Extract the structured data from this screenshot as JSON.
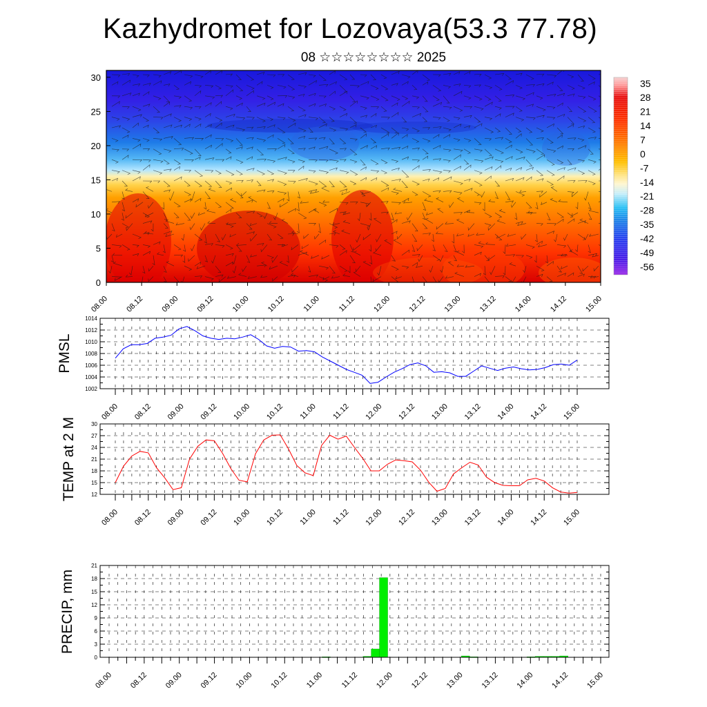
{
  "title": "Kazhydromet for Lozovaya(53.3 77.78)",
  "subtitle": "08 ☆☆☆☆☆☆☆☆ 2025",
  "colors": {
    "pmsl_line": "#0000ff",
    "temp_line": "#ff0000",
    "precip_bar": "#00ee00",
    "precip_bar_edge": "#00aa00",
    "axis": "#000000"
  },
  "chart_data": [
    {
      "type": "heatmap",
      "name": "cross-section",
      "x_tick_labels": [
        "08.00",
        "08.12",
        "09.00",
        "09.12",
        "10.00",
        "10.12",
        "11.00",
        "11.12",
        "12.00",
        "12.12",
        "13.00",
        "13.12",
        "14.00",
        "14.12",
        "15.00"
      ],
      "y_tick_labels": [
        "0",
        "5",
        "10",
        "15",
        "20",
        "25",
        "30"
      ],
      "ylim": [
        0,
        31
      ],
      "colorbar_labels": [
        "35",
        "28",
        "21",
        "14",
        "7",
        "0",
        "-7",
        "-14",
        "-21",
        "-28",
        "-35",
        "-42",
        "-49",
        "-56"
      ],
      "colorbar_range": [
        -60,
        38
      ],
      "has_wind_barbs": true
    },
    {
      "type": "line",
      "ylabel": "PMSL",
      "x_tick_labels": [
        "08.00",
        "08.12",
        "09.00",
        "09.12",
        "10.00",
        "10.12",
        "11.00",
        "11.12",
        "12.00",
        "12.12",
        "13.00",
        "13.12",
        "14.00",
        "14.12",
        "15.00"
      ],
      "y_tick_labels": [
        "1002",
        "1004",
        "1006",
        "1008",
        "1010",
        "1012",
        "1014"
      ],
      "ylim": [
        1002,
        1014
      ],
      "values": [
        1007.2,
        1008.8,
        1009.5,
        1009.5,
        1009.7,
        1010.6,
        1010.8,
        1011.1,
        1012.2,
        1012.6,
        1011.9,
        1011,
        1010.6,
        1010.4,
        1010.6,
        1010.5,
        1010.8,
        1011.2,
        1010.4,
        1009.3,
        1008.9,
        1009.2,
        1009.1,
        1008.4,
        1008.5,
        1008.3,
        1007.4,
        1006.7,
        1006,
        1005.3,
        1004.8,
        1004.3,
        1002.9,
        1003.1,
        1004,
        1004.8,
        1005.4,
        1006.1,
        1006.4,
        1005.9,
        1004.8,
        1004.9,
        1004.7,
        1004.1,
        1004.1,
        1005,
        1005.9,
        1005.5,
        1005.1,
        1005.5,
        1005.7,
        1005.4,
        1005.2,
        1005.3,
        1005.6,
        1006.1,
        1006.2,
        1006,
        1006.9
      ]
    },
    {
      "type": "line",
      "ylabel": "TEMP at 2 M",
      "x_tick_labels": [
        "08.00",
        "08.12",
        "09.00",
        "09.12",
        "10.00",
        "10.12",
        "11.00",
        "11.12",
        "12.00",
        "12.12",
        "13.00",
        "13.12",
        "14.00",
        "14.12",
        "15.00"
      ],
      "y_tick_labels": [
        "12",
        "15",
        "18",
        "21",
        "24",
        "27",
        "30"
      ],
      "ylim": [
        12,
        30
      ],
      "values": [
        15,
        19.2,
        21.8,
        23,
        22.6,
        18.8,
        16.2,
        13.2,
        13.7,
        21,
        24.3,
        25.9,
        25.7,
        22.5,
        18.6,
        15.6,
        15.2,
        22.4,
        25.9,
        27.1,
        27.2,
        23.6,
        19.4,
        17.5,
        16.8,
        24.5,
        27.1,
        26.1,
        26.9,
        24,
        21.2,
        18,
        18,
        19.7,
        20.8,
        20.6,
        20.3,
        18.2,
        15.1,
        12.8,
        13.5,
        17.2,
        18.8,
        20.2,
        19.5,
        16.4,
        15,
        14.3,
        14.2,
        14.2,
        15.7,
        16.1,
        15.4,
        13.7,
        12.6,
        12.3,
        12.5
      ]
    },
    {
      "type": "bar",
      "ylabel": "PRECIP, mm",
      "x_tick_labels": [
        "08.00",
        "08.12",
        "09.00",
        "09.12",
        "10.00",
        "10.12",
        "11.00",
        "11.12",
        "12.00",
        "12.12",
        "13.00",
        "13.12",
        "14.00",
        "14.12",
        "15.00"
      ],
      "y_tick_labels": [
        "0",
        "3",
        "6",
        "9",
        "12",
        "15",
        "18",
        "21"
      ],
      "ylim": [
        0,
        21
      ],
      "steps": 60,
      "bars": [
        {
          "step": 26,
          "value": 0.1
        },
        {
          "step": 31,
          "value": 0.2
        },
        {
          "step": 32,
          "value": 1.9
        },
        {
          "step": 33,
          "value": 18.2
        },
        {
          "step": 43,
          "value": 0.3
        },
        {
          "step": 44,
          "value": 0.1
        },
        {
          "step": 51,
          "value": 0.1
        },
        {
          "step": 52,
          "value": 0.2
        },
        {
          "step": 53,
          "value": 0.2
        },
        {
          "step": 54,
          "value": 0.2
        },
        {
          "step": 55,
          "value": 0.3
        }
      ]
    }
  ]
}
